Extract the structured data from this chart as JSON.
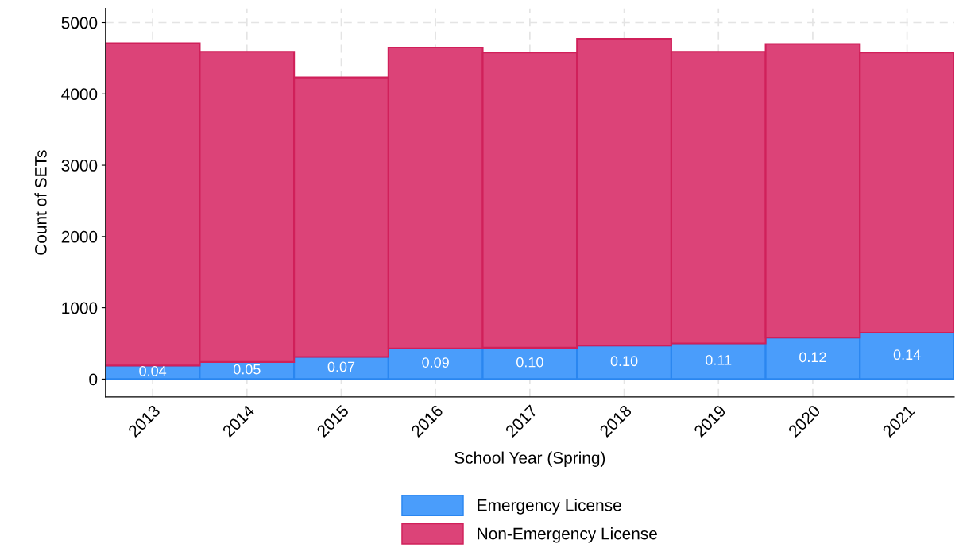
{
  "chart_data": {
    "type": "bar",
    "stacked": true,
    "xlabel": "School Year (Spring)",
    "ylabel": "Count of SETs",
    "categories": [
      "2013",
      "2014",
      "2015",
      "2016",
      "2017",
      "2018",
      "2019",
      "2020",
      "2021"
    ],
    "series": [
      {
        "name": "Emergency License",
        "color": "#4a9dfb",
        "values": [
          190,
          240,
          310,
          430,
          440,
          470,
          500,
          580,
          650
        ]
      },
      {
        "name": "Non-Emergency License",
        "color": "#dc4378",
        "values": [
          4520,
          4350,
          3920,
          4220,
          4140,
          4300,
          4090,
          4120,
          3930
        ]
      }
    ],
    "annotations": [
      "0.04",
      "0.05",
      "0.07",
      "0.09",
      "0.10",
      "0.10",
      "0.11",
      "0.12",
      "0.14"
    ],
    "ylim": [
      -250,
      5200
    ],
    "yticks": [
      0,
      1000,
      2000,
      3000,
      4000,
      5000
    ],
    "grid": true,
    "legend": "bottom"
  }
}
